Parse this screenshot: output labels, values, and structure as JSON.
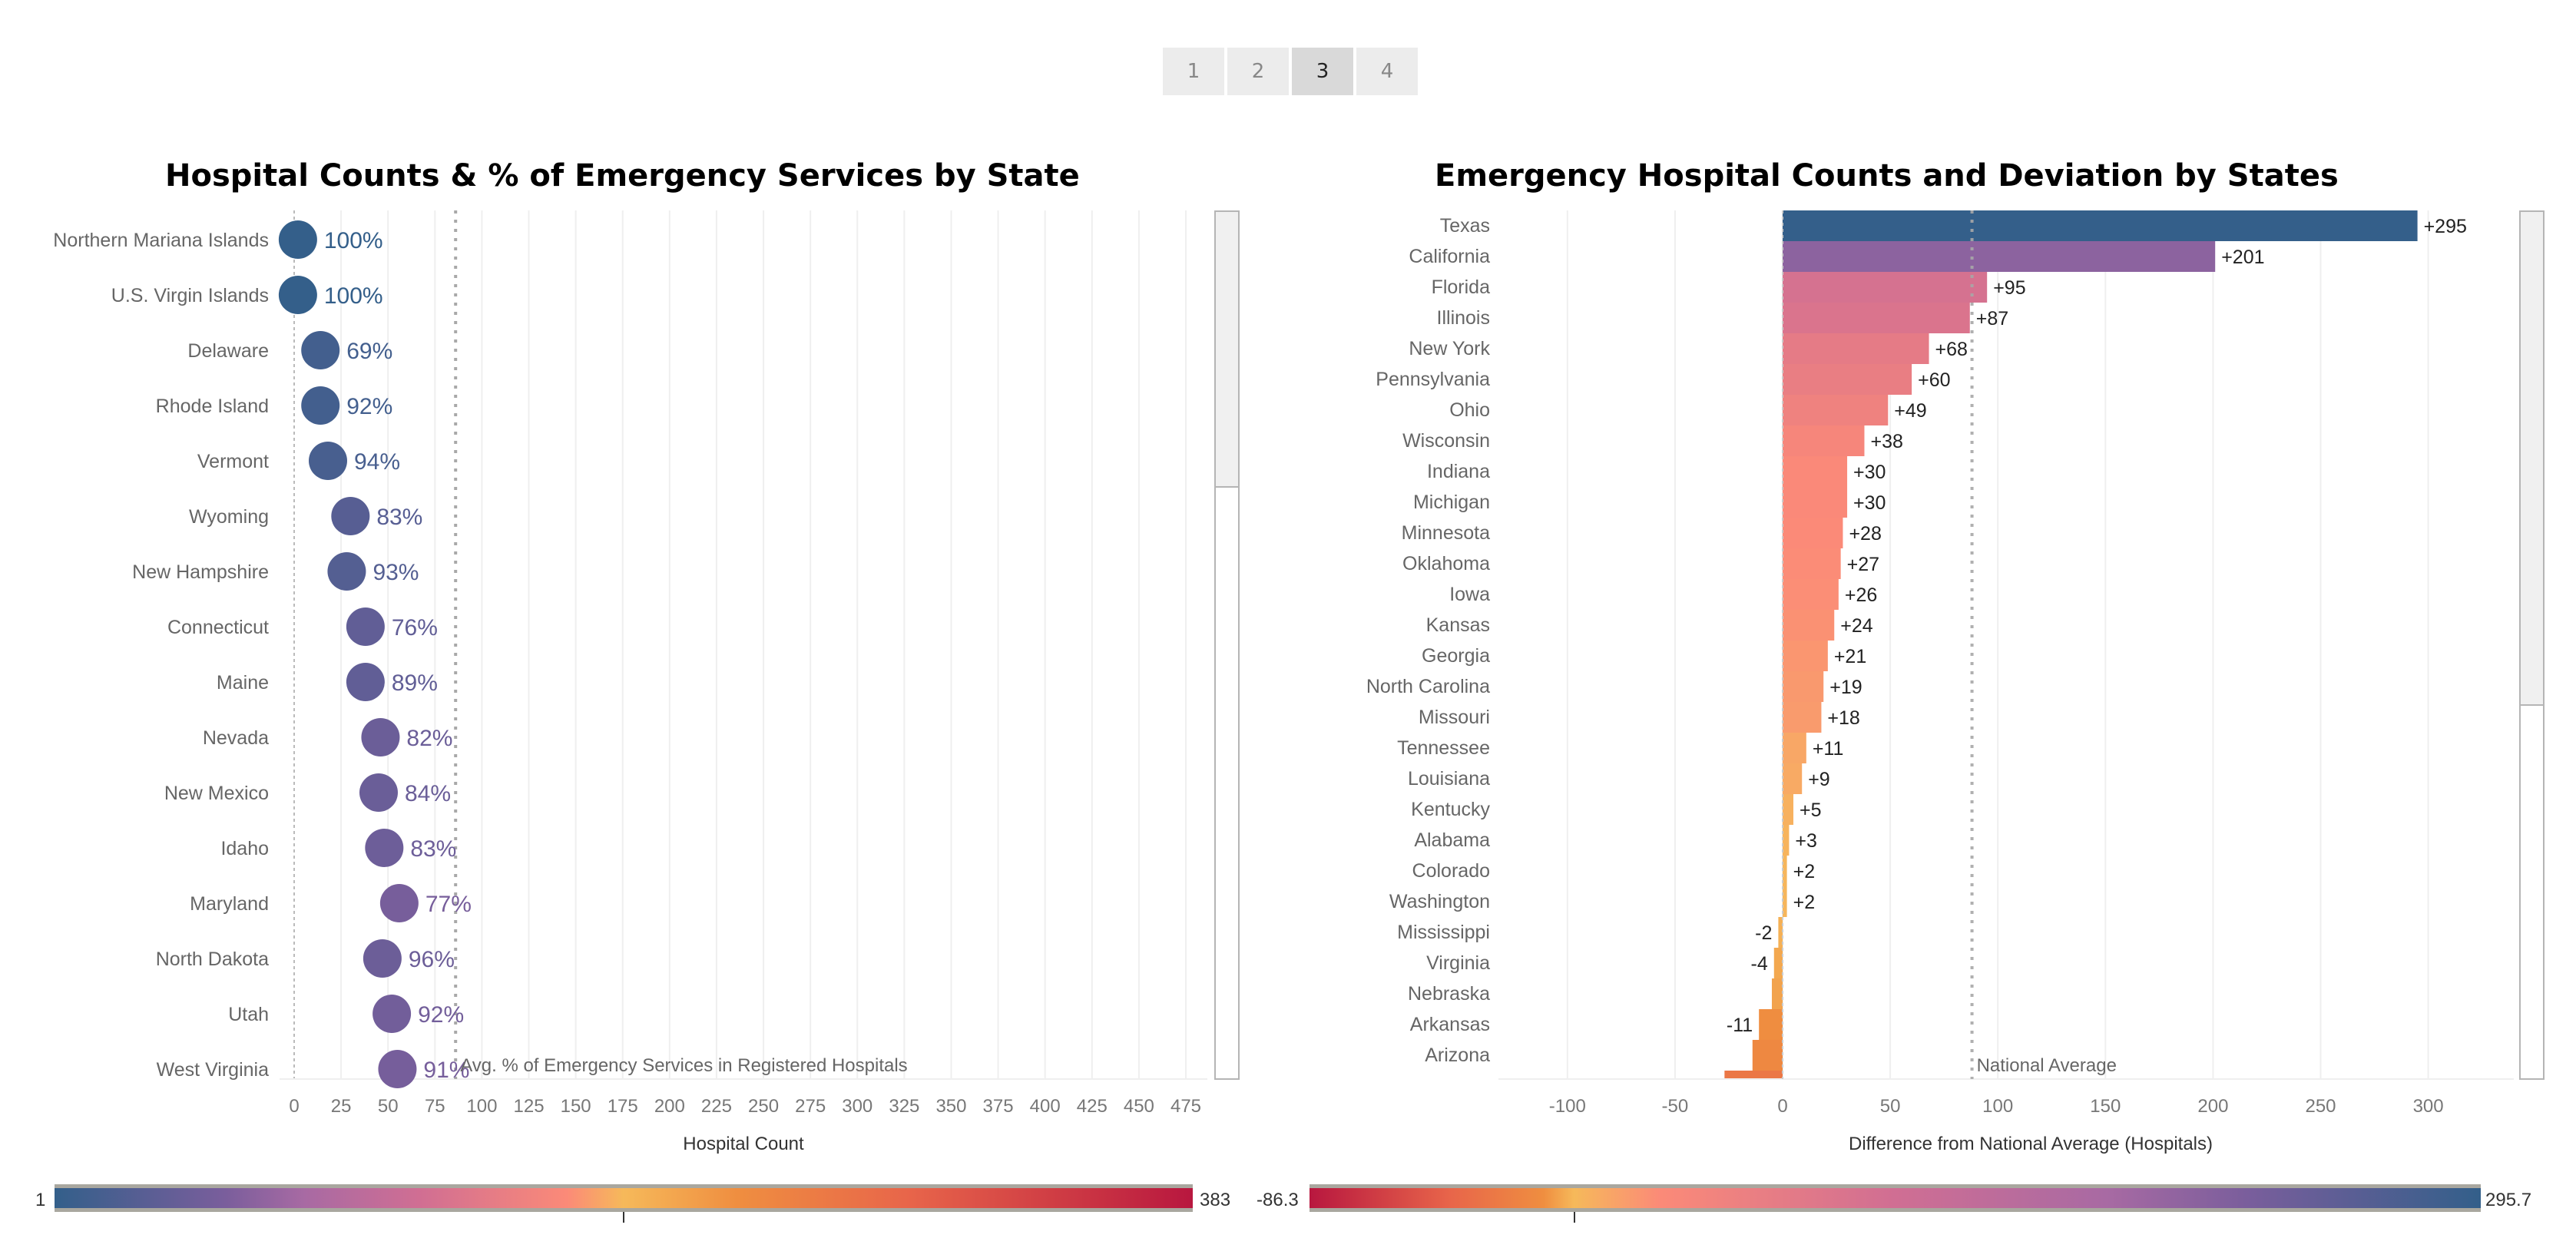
{
  "tabs": [
    "1",
    "2",
    "3",
    "4"
  ],
  "selected_tab": "3",
  "colors": {
    "scale_low_to_high": [
      "#335f8a",
      "#7a5e9c",
      "#a86aa3",
      "#d06e93",
      "#fb8a78",
      "#f6b95a",
      "#ef8e40",
      "#e8654a",
      "#b8173f"
    ],
    "gridline": "#efefef",
    "reference_line": "#a8a8a8"
  },
  "chart_data": [
    {
      "type": "scatter",
      "title": "Hospital Counts & % of Emergency Services by State",
      "xlabel": "Hospital Count",
      "xlim": [
        0,
        475
      ],
      "xticks": [
        0,
        25,
        50,
        75,
        100,
        125,
        150,
        175,
        200,
        225,
        250,
        275,
        300,
        325,
        350,
        375,
        400,
        425,
        450,
        475
      ],
      "grid": true,
      "reference_line": {
        "value": 86,
        "label": "Avg. % of Emergency Services in Registered Hospitals"
      },
      "color_legend": {
        "min": "1",
        "max": "383",
        "minv": 1,
        "maxv": 383
      },
      "points": [
        {
          "state": "Northern Mariana Islands",
          "count": 2,
          "pct": "100%"
        },
        {
          "state": "U.S. Virgin Islands",
          "count": 2,
          "pct": "100%"
        },
        {
          "state": "Delaware",
          "count": 14,
          "pct": "69%"
        },
        {
          "state": "Rhode Island",
          "count": 14,
          "pct": "92%"
        },
        {
          "state": "Vermont",
          "count": 18,
          "pct": "94%"
        },
        {
          "state": "Wyoming",
          "count": 30,
          "pct": "83%"
        },
        {
          "state": "New Hampshire",
          "count": 28,
          "pct": "93%"
        },
        {
          "state": "Connecticut",
          "count": 38,
          "pct": "76%"
        },
        {
          "state": "Maine",
          "count": 38,
          "pct": "89%"
        },
        {
          "state": "Nevada",
          "count": 46,
          "pct": "82%"
        },
        {
          "state": "New Mexico",
          "count": 45,
          "pct": "84%"
        },
        {
          "state": "Idaho",
          "count": 48,
          "pct": "83%"
        },
        {
          "state": "Maryland",
          "count": 56,
          "pct": "77%"
        },
        {
          "state": "North Dakota",
          "count": 47,
          "pct": "96%"
        },
        {
          "state": "Utah",
          "count": 52,
          "pct": "92%"
        },
        {
          "state": "West Virginia",
          "count": 55,
          "pct": "91%"
        }
      ]
    },
    {
      "type": "bar",
      "title": "Emergency Hospital Counts and Deviation by States",
      "xlabel": "Difference from National Average (Hospitals)",
      "xlim": [
        -130,
        340
      ],
      "xticks": [
        -100,
        -50,
        0,
        50,
        100,
        150,
        200,
        250,
        300
      ],
      "grid": true,
      "reference_line": {
        "value": 88,
        "label": "National Average"
      },
      "color_legend": {
        "min": "-86.3",
        "max": "295.7",
        "minv": -86.3,
        "maxv": 295.7
      },
      "bars": [
        {
          "state": "Texas",
          "value": 295,
          "label": "+295"
        },
        {
          "state": "California",
          "value": 201,
          "label": "+201"
        },
        {
          "state": "Florida",
          "value": 95,
          "label": "+95"
        },
        {
          "state": "Illinois",
          "value": 87,
          "label": "+87"
        },
        {
          "state": "New York",
          "value": 68,
          "label": "+68"
        },
        {
          "state": "Pennsylvania",
          "value": 60,
          "label": "+60"
        },
        {
          "state": "Ohio",
          "value": 49,
          "label": "+49"
        },
        {
          "state": "Wisconsin",
          "value": 38,
          "label": "+38"
        },
        {
          "state": "Indiana",
          "value": 30,
          "label": "+30"
        },
        {
          "state": "Michigan",
          "value": 30,
          "label": "+30"
        },
        {
          "state": "Minnesota",
          "value": 28,
          "label": "+28"
        },
        {
          "state": "Oklahoma",
          "value": 27,
          "label": "+27"
        },
        {
          "state": "Iowa",
          "value": 26,
          "label": "+26"
        },
        {
          "state": "Kansas",
          "value": 24,
          "label": "+24"
        },
        {
          "state": "Georgia",
          "value": 21,
          "label": "+21"
        },
        {
          "state": "North Carolina",
          "value": 19,
          "label": "+19"
        },
        {
          "state": "Missouri",
          "value": 18,
          "label": "+18"
        },
        {
          "state": "Tennessee",
          "value": 11,
          "label": "+11"
        },
        {
          "state": "Louisiana",
          "value": 9,
          "label": "+9"
        },
        {
          "state": "Kentucky",
          "value": 5,
          "label": "+5"
        },
        {
          "state": "Alabama",
          "value": 3,
          "label": "+3"
        },
        {
          "state": "Colorado",
          "value": 2,
          "label": "+2"
        },
        {
          "state": "Washington",
          "value": 2,
          "label": "+2"
        },
        {
          "state": "Mississippi",
          "value": -2,
          "label": "-2"
        },
        {
          "state": "Virginia",
          "value": -4,
          "label": "-4"
        },
        {
          "state": "Nebraska",
          "value": -5,
          "label": ""
        },
        {
          "state": "Arkansas",
          "value": -11,
          "label": "-11"
        },
        {
          "state": "Arizona",
          "value": -14,
          "label": ""
        },
        {
          "state": "",
          "value": -27,
          "label": ""
        }
      ]
    }
  ]
}
